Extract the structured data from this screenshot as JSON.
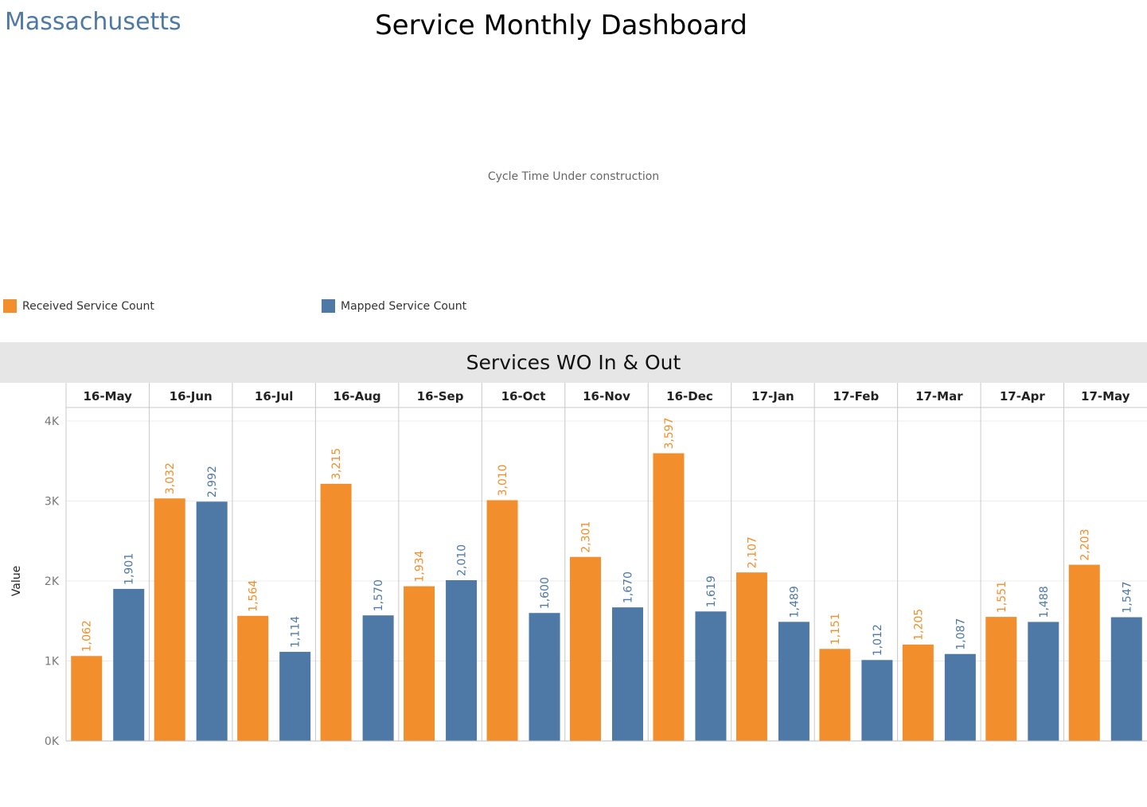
{
  "header": {
    "region": "Massachusetts",
    "title": "Service Monthly Dashboard"
  },
  "placeholder_text": "Cycle Time Under construction",
  "legend": [
    {
      "label": "Received Service Count",
      "color": "#f28e2b"
    },
    {
      "label": "Mapped Service Count",
      "color": "#4e79a7"
    }
  ],
  "chart_data": {
    "type": "bar",
    "title": "Services WO In & Out",
    "xlabel": "",
    "ylabel": "Value",
    "ylim": [
      0,
      4000
    ],
    "yticks": [
      {
        "value": 0,
        "label": "0K"
      },
      {
        "value": 1000,
        "label": "1K"
      },
      {
        "value": 2000,
        "label": "2K"
      },
      {
        "value": 3000,
        "label": "3K"
      },
      {
        "value": 4000,
        "label": "4K"
      }
    ],
    "grid": true,
    "legend_position": "above chart",
    "categories": [
      "16-May",
      "16-Jun",
      "16-Jul",
      "16-Aug",
      "16-Sep",
      "16-Oct",
      "16-Nov",
      "16-Dec",
      "17-Jan",
      "17-Feb",
      "17-Mar",
      "17-Apr",
      "17-May"
    ],
    "series": [
      {
        "name": "Received Service Count",
        "color": "#f28e2b",
        "values": [
          1062,
          3032,
          1564,
          3215,
          1934,
          3010,
          2301,
          3597,
          2107,
          1151,
          1205,
          1551,
          2203
        ]
      },
      {
        "name": "Mapped Service Count",
        "color": "#4e79a7",
        "values": [
          1901,
          2992,
          1114,
          1570,
          2010,
          1600,
          1670,
          1619,
          1489,
          1012,
          1087,
          1488,
          1547
        ]
      }
    ]
  }
}
